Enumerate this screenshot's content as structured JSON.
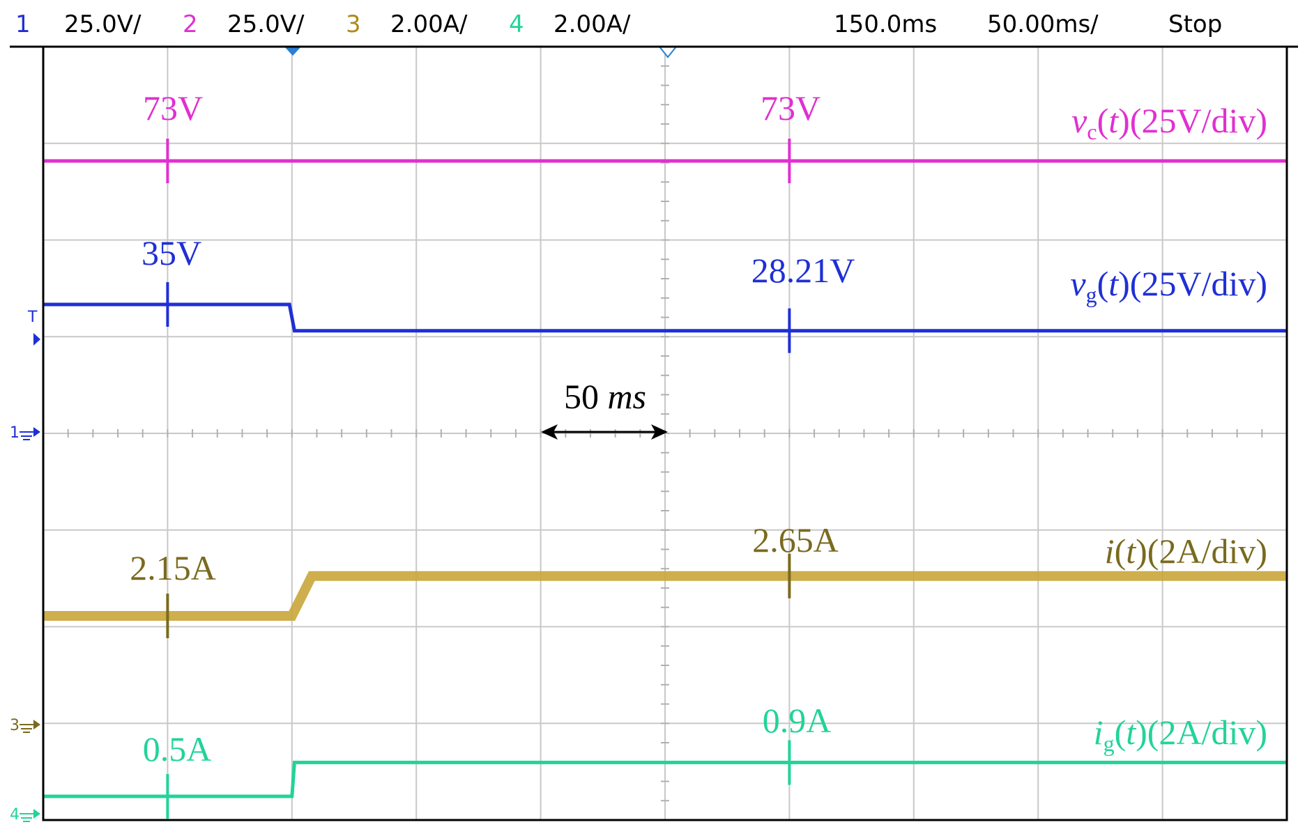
{
  "header": {
    "channels": [
      {
        "num": "1",
        "scale": "25.0V/",
        "color": "#1f2fd6"
      },
      {
        "num": "2",
        "scale": "25.0V/",
        "color": "#e030d0"
      },
      {
        "num": "3",
        "scale": "2.00A/",
        "color": "#b08a1a"
      },
      {
        "num": "4",
        "scale": "2.00A/",
        "color": "#22d39a"
      }
    ],
    "delay": "150.0ms",
    "timebase": "50.00ms/",
    "status": "Stop"
  },
  "colors": {
    "vc": "#e030d0",
    "vg": "#1f2fd6",
    "i": "#c9a53a",
    "i_text": "#7a6a1e",
    "ig": "#22d39a",
    "grid": "#c8c8c8",
    "frame": "#000000"
  },
  "chart_data": {
    "type": "line",
    "title": "",
    "xlabel": "",
    "ylabel": "",
    "x_unit": "ms",
    "timebase_ms_per_div": 50,
    "xlim": [
      0,
      500
    ],
    "grid": true,
    "series": [
      {
        "id": "vc",
        "label_text": "(25V/div)",
        "var": "v",
        "sub": "c",
        "arg": "t",
        "x": [
          0,
          500
        ],
        "y": [
          73,
          73
        ]
      },
      {
        "id": "vg",
        "label_text": "(25V/div)",
        "var": "v",
        "sub": "g",
        "arg": "t",
        "x": [
          0,
          99,
          101,
          500
        ],
        "y": [
          35,
          35,
          28.21,
          28.21
        ]
      },
      {
        "id": "i",
        "label_text": "(2A/div)",
        "var": "i",
        "sub": "",
        "arg": "t",
        "x": [
          0,
          100,
          108,
          500
        ],
        "y": [
          2.15,
          2.15,
          2.65,
          2.65
        ]
      },
      {
        "id": "ig",
        "label_text": "(2A/div)",
        "var": "i",
        "sub": "g",
        "arg": "t",
        "x": [
          0,
          100,
          101,
          500
        ],
        "y": [
          0.5,
          0.5,
          0.9,
          0.9
        ]
      }
    ],
    "annotations": [
      {
        "series": "vc",
        "before": "73V",
        "after": "73V"
      },
      {
        "series": "vg",
        "before": "35V",
        "after": "28.21V"
      },
      {
        "series": "i",
        "before": "2.15A",
        "after": "2.65A"
      },
      {
        "series": "ig",
        "before": "0.5A",
        "after": "0.9A"
      }
    ],
    "time_marker": {
      "value": "50",
      "unit": "ms"
    }
  }
}
